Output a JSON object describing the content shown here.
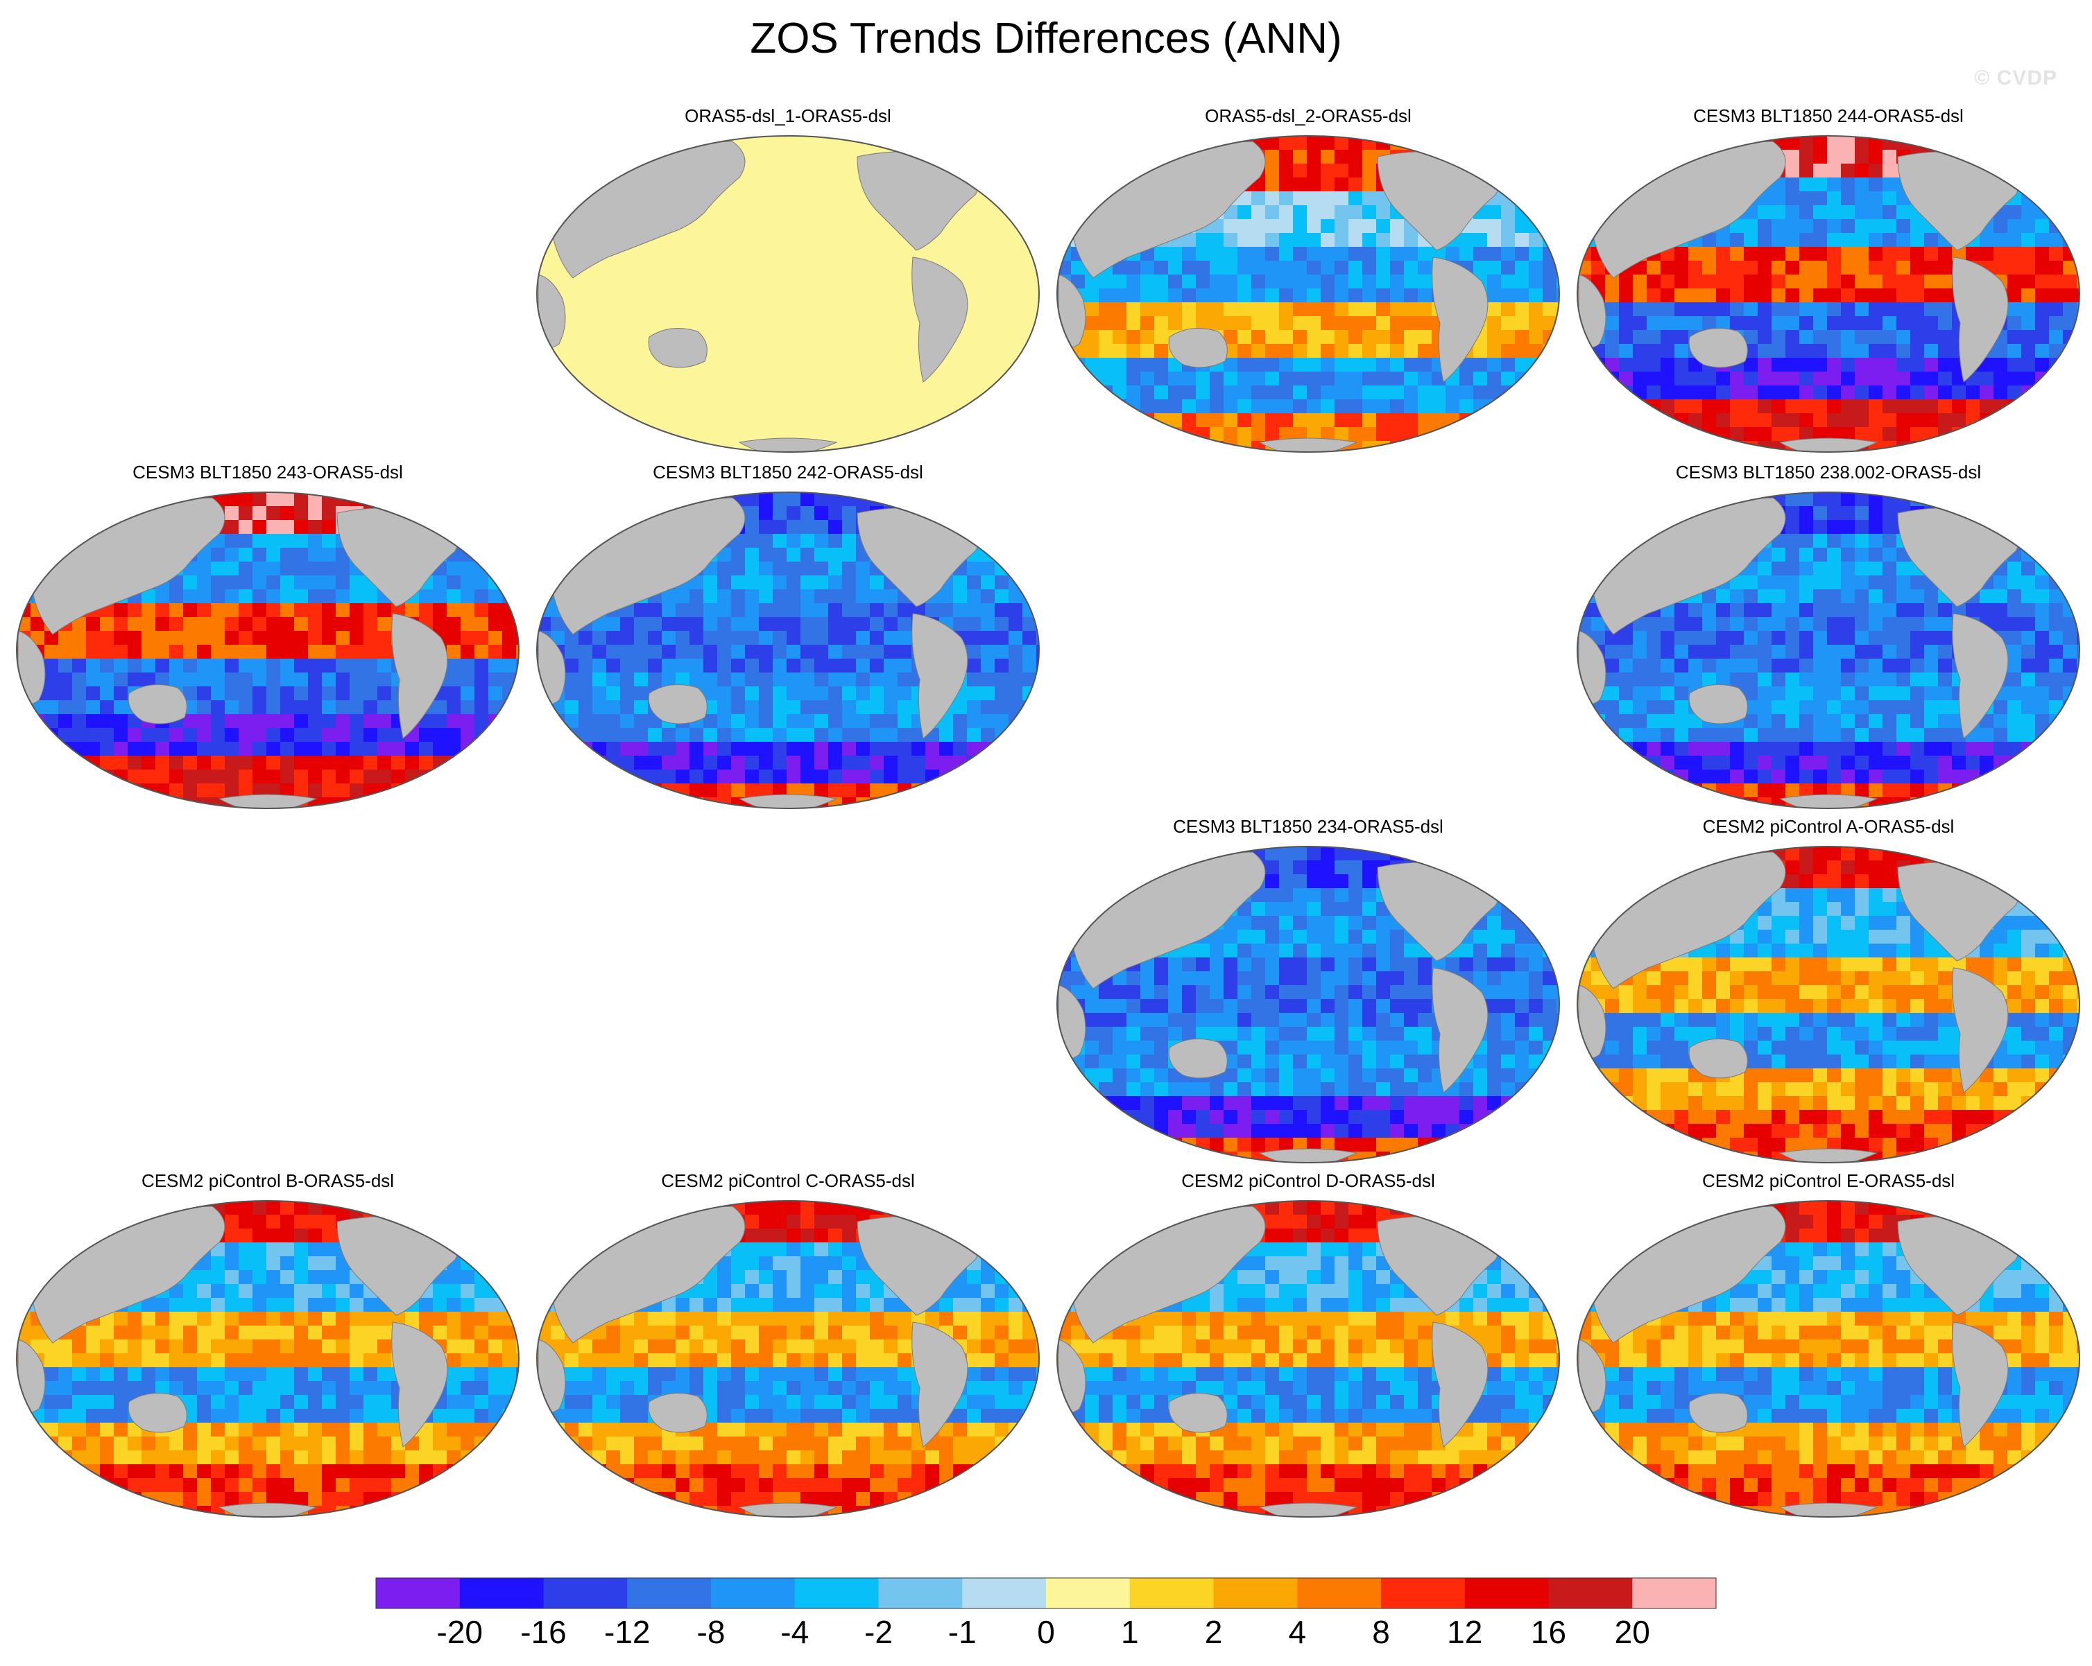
{
  "title": "ZOS Trends Differences (ANN)",
  "watermark": "© CVDP",
  "colors": {
    "land": "#bdbdbd",
    "frame": "#555555",
    "background": "#ffffff"
  },
  "panels": [
    {
      "title": "ORAS5-dsl_1-ORAS5-dsl",
      "row": 0,
      "col": 1,
      "pattern": "zero"
    },
    {
      "title": "ORAS5-dsl_2-ORAS5-dsl",
      "row": 0,
      "col": 2,
      "pattern": "mixed"
    },
    {
      "title": "CESM3 BLT1850 244-ORAS5-dsl",
      "row": 0,
      "col": 3,
      "pattern": "strong"
    },
    {
      "title": "CESM3 BLT1850 243-ORAS5-dsl",
      "row": 1,
      "col": 0,
      "pattern": "strong"
    },
    {
      "title": "CESM3 BLT1850 242-ORAS5-dsl",
      "row": 1,
      "col": 1,
      "pattern": "cool"
    },
    {
      "title": "CESM3 BLT1850 238.002-ORAS5-dsl",
      "row": 1,
      "col": 3,
      "pattern": "cool"
    },
    {
      "title": "CESM3 BLT1850 234-ORAS5-dsl",
      "row": 2,
      "col": 2,
      "pattern": "cool"
    },
    {
      "title": "CESM2 piControl A-ORAS5-dsl",
      "row": 2,
      "col": 3,
      "pattern": "warm"
    },
    {
      "title": "CESM2 piControl B-ORAS5-dsl",
      "row": 3,
      "col": 0,
      "pattern": "warm"
    },
    {
      "title": "CESM2 piControl C-ORAS5-dsl",
      "row": 3,
      "col": 1,
      "pattern": "warm"
    },
    {
      "title": "CESM2 piControl D-ORAS5-dsl",
      "row": 3,
      "col": 2,
      "pattern": "warm"
    },
    {
      "title": "CESM2 piControl E-ORAS5-dsl",
      "row": 3,
      "col": 3,
      "pattern": "warm"
    }
  ],
  "colorbar": {
    "colors": [
      "#7c1ef0",
      "#1e12ff",
      "#2c3fe8",
      "#3274e6",
      "#1f96f7",
      "#08bff8",
      "#74c4f0",
      "#b5dcf0",
      "#fdf59a",
      "#fcd425",
      "#fba804",
      "#fd7a00",
      "#fe2a0a",
      "#e60000",
      "#c81a1a",
      "#fbb2b2"
    ],
    "labels": [
      "-20",
      "-16",
      "-12",
      "-8",
      "-4",
      "-2",
      "-1",
      "0",
      "1",
      "2",
      "4",
      "8",
      "12",
      "16",
      "20"
    ]
  }
}
